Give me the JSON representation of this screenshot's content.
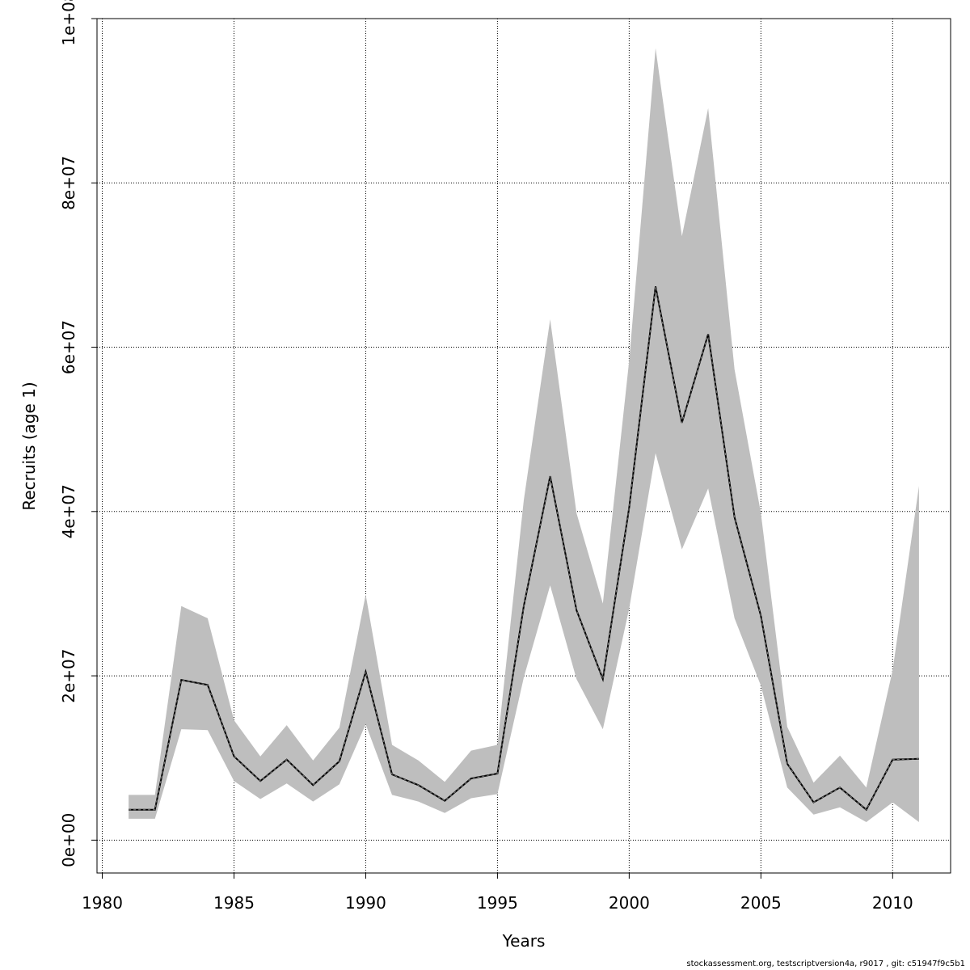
{
  "footer_text": "stockassessment.org, testscriptversion4a, r9017 , git: c51947f9c5b1",
  "colors": {
    "band": "#bebebe",
    "line": "#000000",
    "grid": "#000000"
  },
  "chart_data": {
    "type": "line",
    "title": "",
    "xlabel": "Years",
    "ylabel": "Recruits (age 1)",
    "xlim": [
      1979.8,
      2012.2
    ],
    "ylim": [
      -4000000,
      100000000
    ],
    "x_ticks": [
      1980,
      1985,
      1990,
      1995,
      2000,
      2005,
      2010
    ],
    "y_ticks": [
      0,
      20000000,
      40000000,
      60000000,
      80000000,
      100000000
    ],
    "y_tick_labels": [
      "0e+00",
      "2e+07",
      "4e+07",
      "6e+07",
      "8e+07",
      "1e+08"
    ],
    "grid": true,
    "x": [
      1981,
      1982,
      1983,
      1984,
      1985,
      1986,
      1987,
      1988,
      1989,
      1990,
      1991,
      1992,
      1993,
      1994,
      1995,
      1996,
      1997,
      1998,
      1999,
      2000,
      2001,
      2002,
      2003,
      2004,
      2005,
      2006,
      2007,
      2008,
      2009,
      2010,
      2011
    ],
    "series": [
      {
        "values": [
          3700000,
          3700000,
          19500000,
          18900000,
          10200000,
          7200000,
          9800000,
          6700000,
          9600000,
          20500000,
          8000000,
          6700000,
          4800000,
          7500000,
          8100000,
          28500000,
          44300000,
          28000000,
          19600000,
          40500000,
          67400000,
          50800000,
          61600000,
          39300000,
          27300000,
          9300000,
          4600000,
          6400000,
          3700000,
          9800000,
          9900000
        ],
        "lower": [
          2600000,
          2600000,
          13500000,
          13400000,
          7200000,
          5000000,
          6900000,
          4700000,
          6800000,
          14100000,
          5500000,
          4700000,
          3300000,
          5100000,
          5600000,
          19800000,
          31000000,
          19600000,
          13500000,
          28200000,
          47100000,
          35400000,
          42800000,
          27000000,
          18800000,
          6400000,
          3100000,
          4000000,
          2200000,
          4600000,
          2200000
        ],
        "upper": [
          5500000,
          5500000,
          28500000,
          27000000,
          14600000,
          10200000,
          14000000,
          9700000,
          13700000,
          29900000,
          11600000,
          9700000,
          7100000,
          10900000,
          11600000,
          41400000,
          63400000,
          39800000,
          28800000,
          58400000,
          96400000,
          73500000,
          89100000,
          57300000,
          39800000,
          13800000,
          7000000,
          10300000,
          6400000,
          20700000,
          43100000
        ]
      }
    ]
  }
}
